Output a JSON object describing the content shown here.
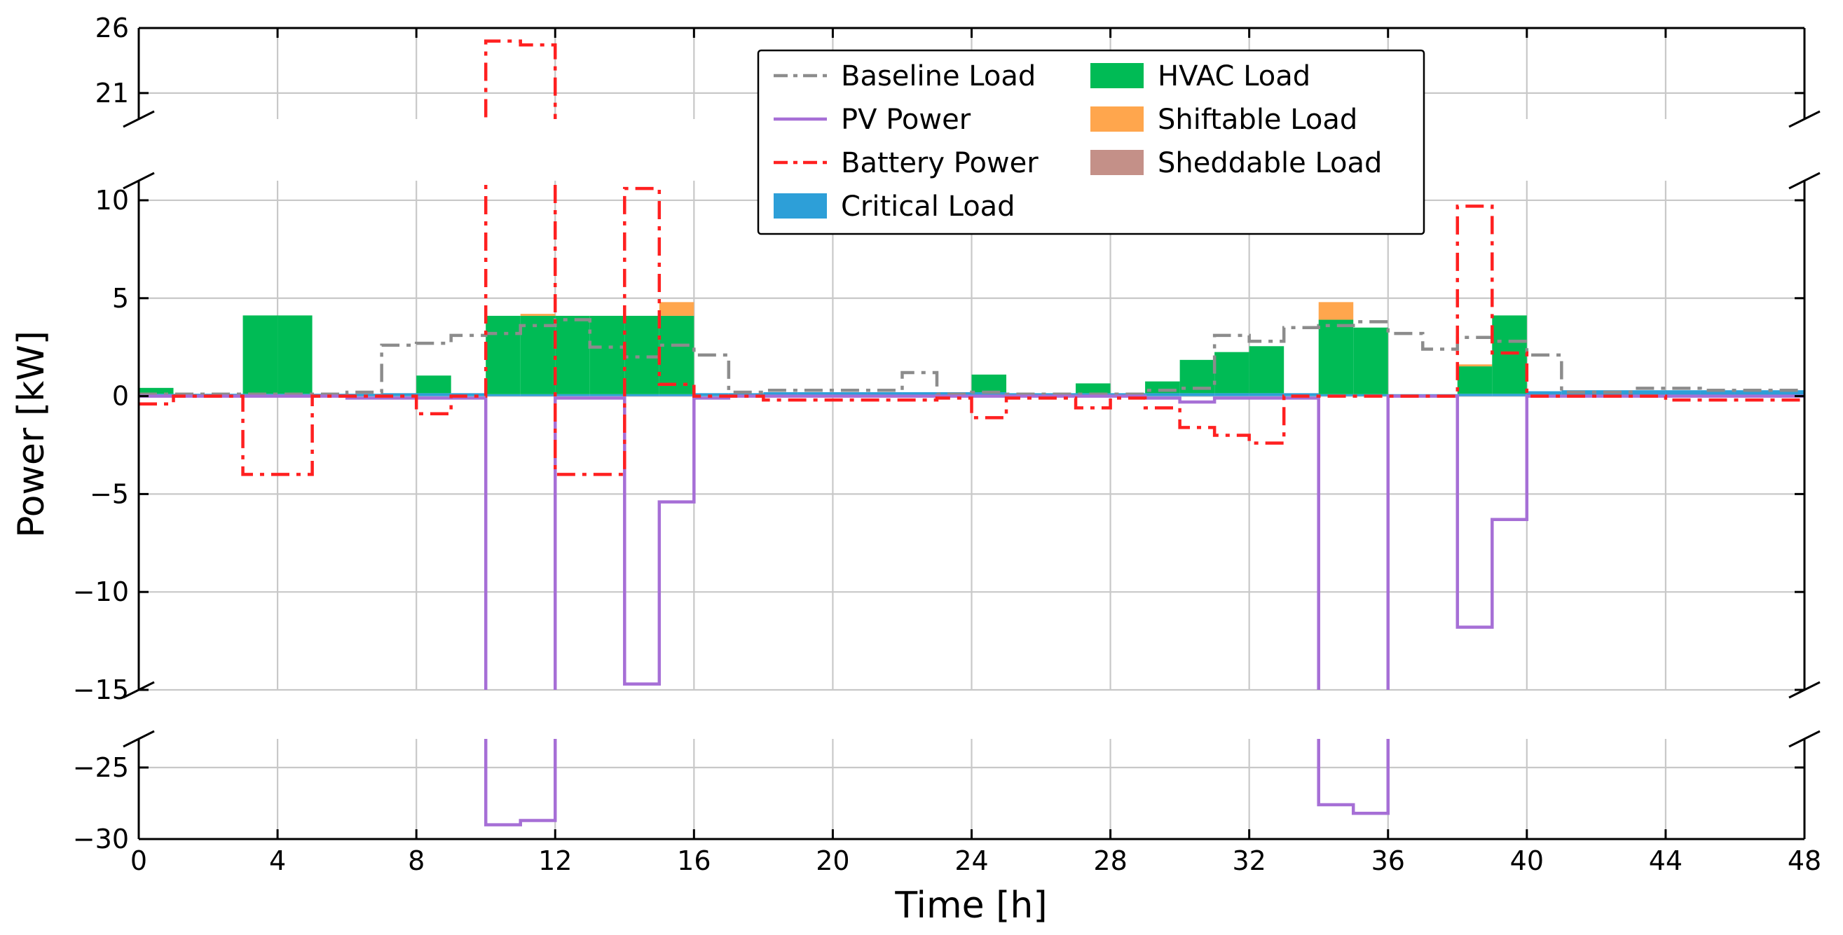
{
  "chart_data": {
    "type": "step",
    "xlabel": "Time [h]",
    "ylabel": "Power [kW]",
    "xlim": [
      0,
      48
    ],
    "x_ticks": [
      0,
      4,
      8,
      12,
      16,
      20,
      24,
      28,
      32,
      36,
      40,
      44,
      48
    ],
    "y_axis_breaks": {
      "top_panel": {
        "ylim": [
          19,
          26
        ],
        "ticks": [
          21,
          26
        ]
      },
      "middle_panel": {
        "ylim": [
          -15,
          11
        ],
        "ticks": [
          -15,
          -10,
          -5,
          0,
          5,
          10
        ]
      },
      "bottom_panel": {
        "ylim": [
          -30,
          -23
        ],
        "ticks": [
          -25,
          -30
        ]
      }
    },
    "tick_text": {
      "x": [
        "0",
        "4",
        "8",
        "12",
        "16",
        "20",
        "24",
        "28",
        "32",
        "36",
        "40",
        "44",
        "48"
      ],
      "y_top": [
        "21",
        "26"
      ],
      "y_mid": [
        "10",
        "5",
        "0",
        "−5",
        "−10",
        "−15"
      ],
      "y_bot": [
        "−25",
        "−30"
      ]
    },
    "colors": {
      "baseline": "#8c8c8c",
      "pv": "#a66fd6",
      "battery": "#ff2020",
      "critical": "#2d9fd8",
      "hvac": "#00bb55",
      "shiftable": "#ffa64d",
      "sheddable": "#c49088"
    },
    "legend": [
      {
        "key": "baseline",
        "label": "Baseline Load",
        "kind": "dashdot"
      },
      {
        "key": "pv",
        "label": "PV Power",
        "kind": "line"
      },
      {
        "key": "battery",
        "label": "Battery Power",
        "kind": "dashdot"
      },
      {
        "key": "critical",
        "label": "Critical Load",
        "kind": "patch"
      },
      {
        "key": "hvac",
        "label": "HVAC Load",
        "kind": "patch"
      },
      {
        "key": "shiftable",
        "label": "Shiftable Load",
        "kind": "patch"
      },
      {
        "key": "sheddable",
        "label": "Sheddable Load",
        "kind": "patch"
      }
    ],
    "hours": [
      0,
      1,
      2,
      3,
      4,
      5,
      6,
      7,
      8,
      9,
      10,
      11,
      12,
      13,
      14,
      15,
      16,
      17,
      18,
      19,
      20,
      21,
      22,
      23,
      24,
      25,
      26,
      27,
      28,
      29,
      30,
      31,
      32,
      33,
      34,
      35,
      36,
      37,
      38,
      39,
      40,
      41,
      42,
      43,
      44,
      45,
      46,
      47
    ],
    "series": [
      {
        "name": "Critical Load",
        "key": "critical",
        "kind": "bar",
        "values": [
          0.12,
          0.12,
          0.12,
          0.12,
          0.12,
          0.12,
          0.12,
          0.15,
          0.15,
          0.15,
          0.1,
          0.1,
          0.1,
          0.1,
          0.1,
          0.1,
          0.15,
          0.15,
          0.2,
          0.2,
          0.2,
          0.2,
          0.2,
          0.2,
          0.2,
          0.15,
          0.15,
          0.15,
          0.15,
          0.15,
          0.15,
          0.15,
          0.15,
          0.15,
          0.1,
          0.1,
          0.1,
          0.1,
          0.12,
          0.12,
          0.25,
          0.3,
          0.3,
          0.3,
          0.3,
          0.3,
          0.3,
          0.3
        ]
      },
      {
        "name": "HVAC Load",
        "key": "hvac",
        "kind": "bar",
        "values": [
          0.3,
          0,
          0,
          4,
          4,
          0,
          0,
          0,
          0.9,
          0,
          4,
          4,
          4,
          4,
          4,
          4,
          0,
          0,
          0,
          0,
          0,
          0,
          0,
          0,
          0.9,
          0,
          0,
          0.5,
          0,
          0.6,
          1.7,
          2.1,
          2.4,
          0,
          3.8,
          3.4,
          0,
          0,
          1.4,
          4,
          0,
          0,
          0,
          0,
          0,
          0,
          0,
          0
        ]
      },
      {
        "name": "Shiftable Load",
        "key": "shiftable",
        "kind": "bar",
        "values": [
          0,
          0,
          0,
          0,
          0,
          0,
          0,
          0,
          0,
          0,
          0,
          0.1,
          0,
          0,
          0,
          0.7,
          0,
          0,
          0,
          0,
          0,
          0,
          0,
          0,
          0,
          0,
          0,
          0,
          0,
          0,
          0,
          0,
          0,
          0,
          0.9,
          0,
          0,
          0,
          0.1,
          0,
          0,
          0,
          0,
          0,
          0,
          0,
          0,
          0
        ]
      },
      {
        "name": "Sheddable Load",
        "key": "sheddable",
        "kind": "bar",
        "values": [
          0,
          0,
          0,
          0,
          0,
          0,
          0,
          0,
          0,
          0,
          0,
          0,
          0,
          0,
          0,
          0,
          0,
          0,
          0,
          0,
          0,
          0,
          0,
          0,
          0,
          0,
          0,
          0,
          0,
          0,
          0,
          0,
          0,
          0,
          0,
          0,
          0,
          0,
          0,
          0,
          0,
          0,
          0,
          0,
          0,
          0,
          0,
          0
        ]
      },
      {
        "name": "Baseline Load",
        "key": "baseline",
        "kind": "step",
        "values": [
          0.1,
          0.1,
          0.1,
          0.1,
          0.1,
          0.1,
          0.2,
          2.6,
          2.7,
          3.1,
          3.2,
          3.6,
          3.9,
          2.5,
          2.0,
          2.6,
          2.1,
          0.2,
          0.3,
          0.3,
          0.3,
          0.3,
          1.2,
          0.1,
          0.2,
          0.1,
          0.1,
          0.1,
          0.1,
          0.3,
          0.4,
          3.1,
          2.8,
          3.5,
          3.6,
          3.8,
          3.2,
          2.4,
          3.0,
          2.8,
          2.1,
          0.2,
          0.2,
          0.4,
          0.4,
          0.3,
          0.3,
          0.3
        ]
      },
      {
        "name": "PV Power",
        "key": "pv",
        "kind": "step",
        "values": [
          0,
          0,
          0,
          0,
          0,
          0,
          -0.1,
          -0.1,
          -0.1,
          -0.1,
          -29,
          -28.7,
          -0.1,
          -0.1,
          -14.7,
          -5.4,
          -0.1,
          0,
          0,
          0,
          0,
          0,
          0,
          0,
          0,
          0,
          0,
          0,
          0,
          -0.1,
          -0.3,
          -0.1,
          -0.1,
          -0.1,
          -27.6,
          -28.2,
          0,
          0,
          -11.8,
          -6.3,
          0,
          0,
          0,
          0,
          0,
          0,
          0,
          0
        ]
      },
      {
        "name": "Battery Power",
        "key": "battery",
        "kind": "step",
        "values": [
          -0.4,
          0,
          0,
          -4,
          -4,
          0,
          0,
          0,
          -0.9,
          0,
          25,
          24.7,
          -4,
          -4,
          10.6,
          0.6,
          0,
          0,
          -0.2,
          -0.2,
          -0.2,
          -0.2,
          -0.2,
          -0.1,
          -1.1,
          -0.1,
          -0.1,
          -0.6,
          -0.1,
          -0.6,
          -1.6,
          -2.0,
          -2.4,
          0,
          0,
          0,
          0,
          0,
          9.7,
          2.2,
          0,
          0,
          0,
          0,
          -0.2,
          -0.2,
          -0.2,
          -0.2
        ]
      }
    ]
  }
}
